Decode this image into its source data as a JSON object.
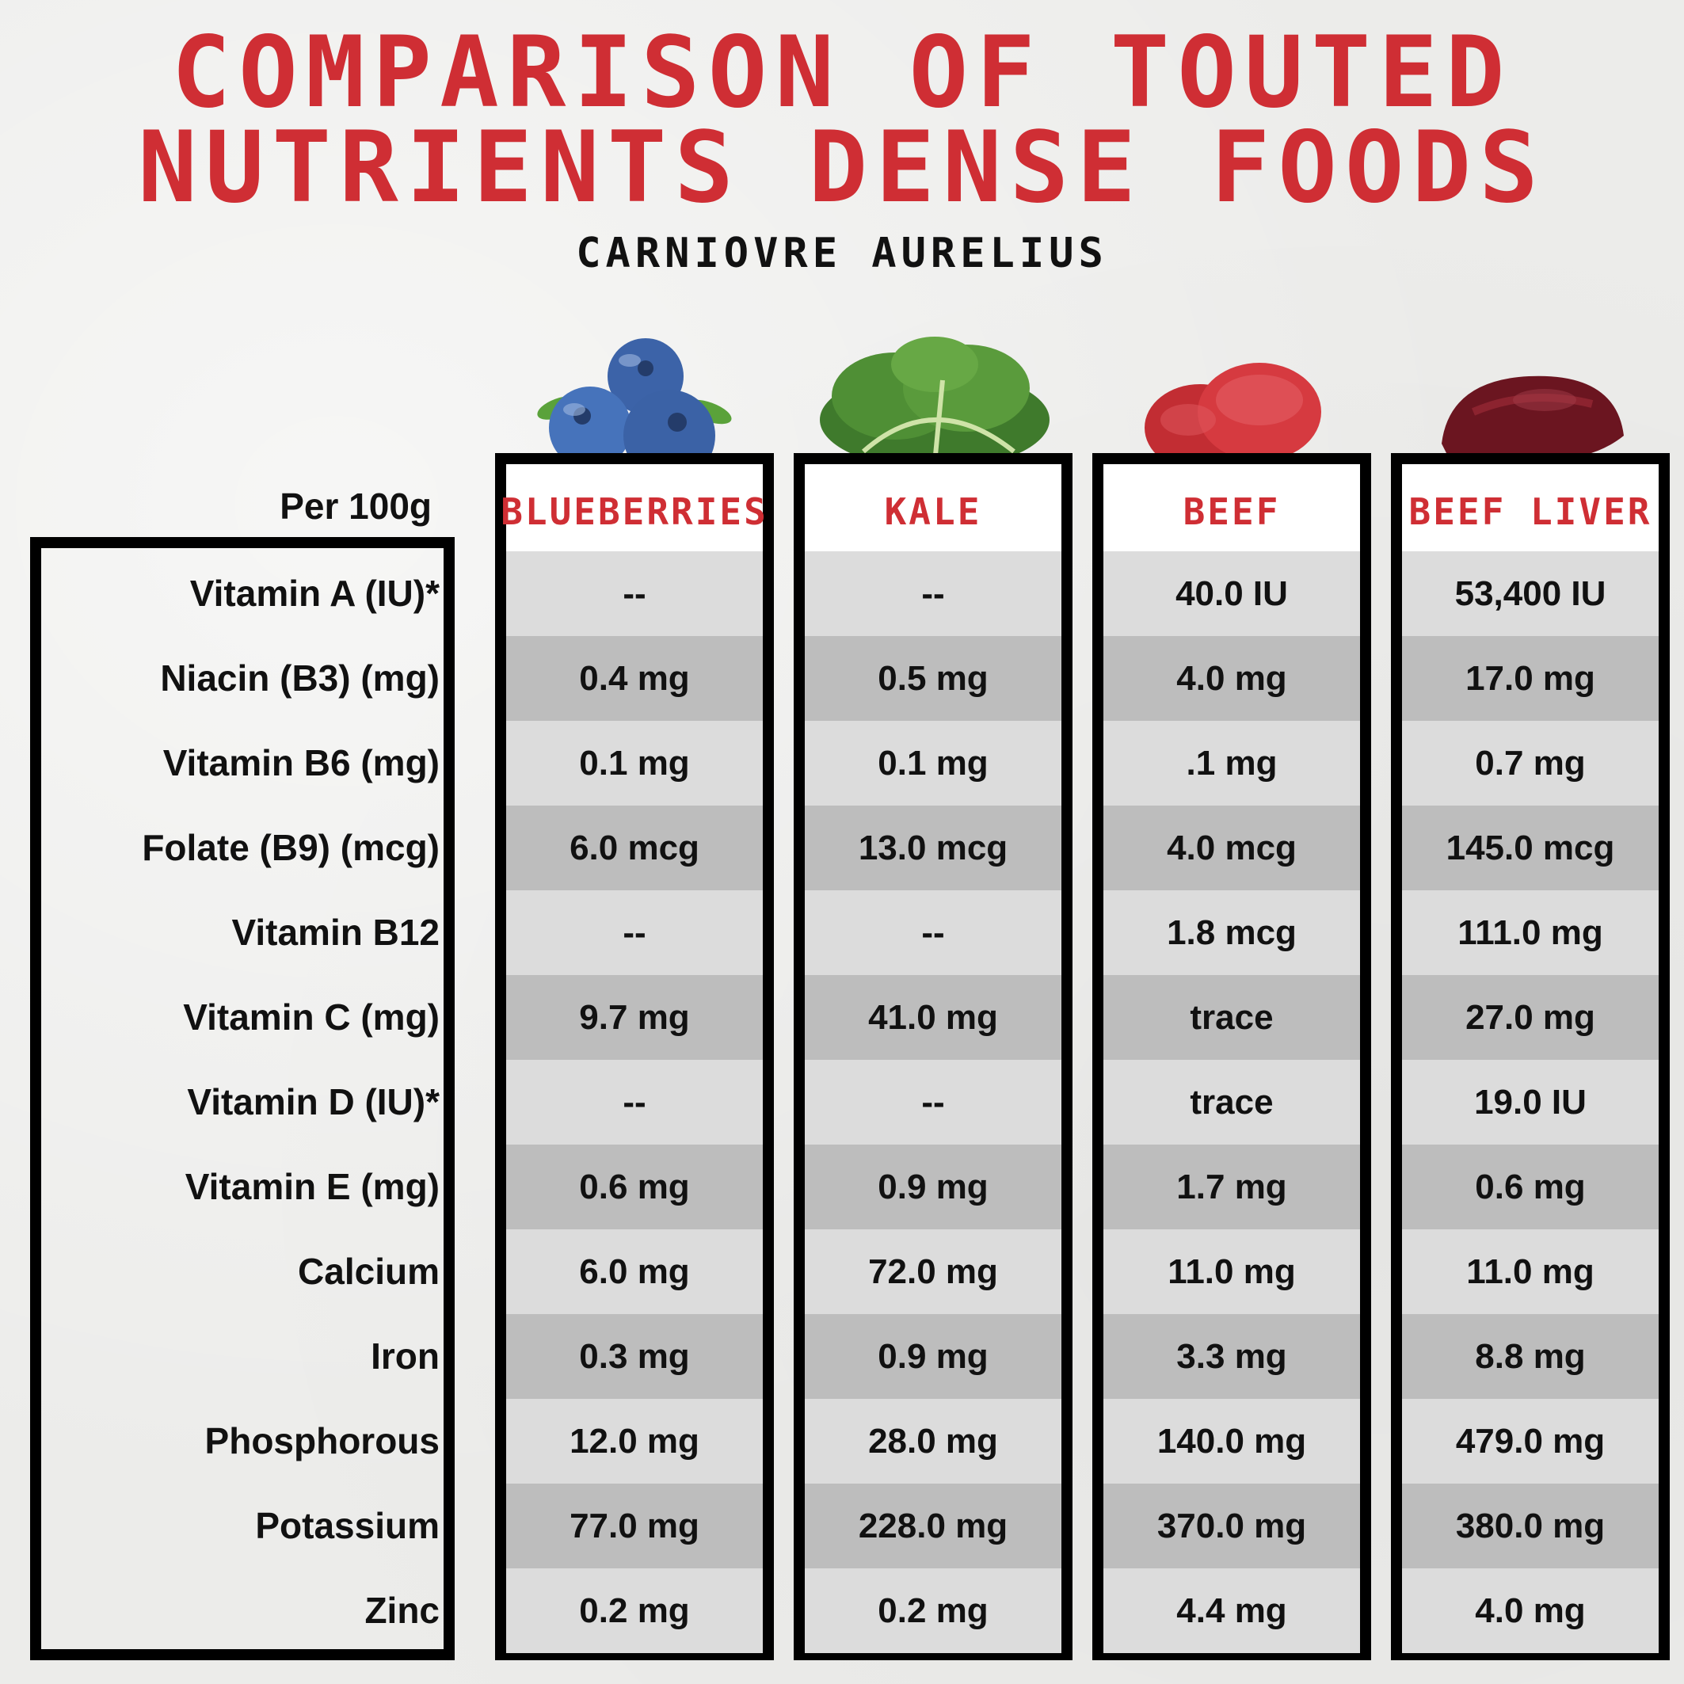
{
  "title": {
    "line1": "COMPARISON OF TOUTED",
    "line2": "NUTRIENTS DENSE FOODS",
    "subtitle": "CARNIOVRE AURELIUS"
  },
  "per_label": "Per 100g",
  "columns": [
    "BLUEBERRIES",
    "KALE",
    "BEEF",
    "BEEF LIVER"
  ],
  "icons": [
    "blueberries-icon",
    "kale-icon",
    "beef-icon",
    "beef-liver-icon"
  ],
  "rows": [
    {
      "label": "Vitamin A (IU)*",
      "values": [
        "--",
        "--",
        "40.0 IU",
        "53,400 IU"
      ]
    },
    {
      "label": "Niacin (B3) (mg)",
      "values": [
        "0.4 mg",
        "0.5 mg",
        "4.0 mg",
        "17.0 mg"
      ]
    },
    {
      "label": "Vitamin B6 (mg)",
      "values": [
        "0.1 mg",
        "0.1 mg",
        ".1 mg",
        "0.7 mg"
      ]
    },
    {
      "label": "Folate (B9) (mcg)",
      "values": [
        "6.0 mcg",
        "13.0 mcg",
        "4.0 mcg",
        "145.0  mcg"
      ]
    },
    {
      "label": "Vitamin B12",
      "values": [
        "--",
        "--",
        "1.8 mcg",
        "111.0 mg"
      ]
    },
    {
      "label": "Vitamin C (mg)",
      "values": [
        "9.7 mg",
        "41.0 mg",
        "trace",
        "27.0 mg"
      ]
    },
    {
      "label": "Vitamin D (IU)*",
      "values": [
        "--",
        "--",
        "trace",
        "19.0 IU"
      ]
    },
    {
      "label": "Vitamin E (mg)",
      "values": [
        "0.6 mg",
        "0.9 mg",
        "1.7 mg",
        "0.6 mg"
      ]
    },
    {
      "label": "Calcium",
      "values": [
        "6.0 mg",
        "72.0 mg",
        "11.0 mg",
        "11.0 mg"
      ]
    },
    {
      "label": "Iron",
      "values": [
        "0.3 mg",
        "0.9 mg",
        "3.3 mg",
        "8.8 mg"
      ]
    },
    {
      "label": "Phosphorous",
      "values": [
        "12.0 mg",
        "28.0 mg",
        "140.0 mg",
        "479.0 mg"
      ]
    },
    {
      "label": "Potassium",
      "values": [
        "77.0 mg",
        "228.0 mg",
        "370.0 mg",
        "380.0 mg"
      ]
    },
    {
      "label": "Zinc",
      "values": [
        "0.2 mg",
        "0.2 mg",
        "4.4 mg",
        "4.0 mg"
      ]
    }
  ],
  "colors": {
    "accent": "#cf2e34",
    "row_light": "#dcdcdc",
    "row_dark": "#bdbdbd",
    "border": "#000000"
  }
}
